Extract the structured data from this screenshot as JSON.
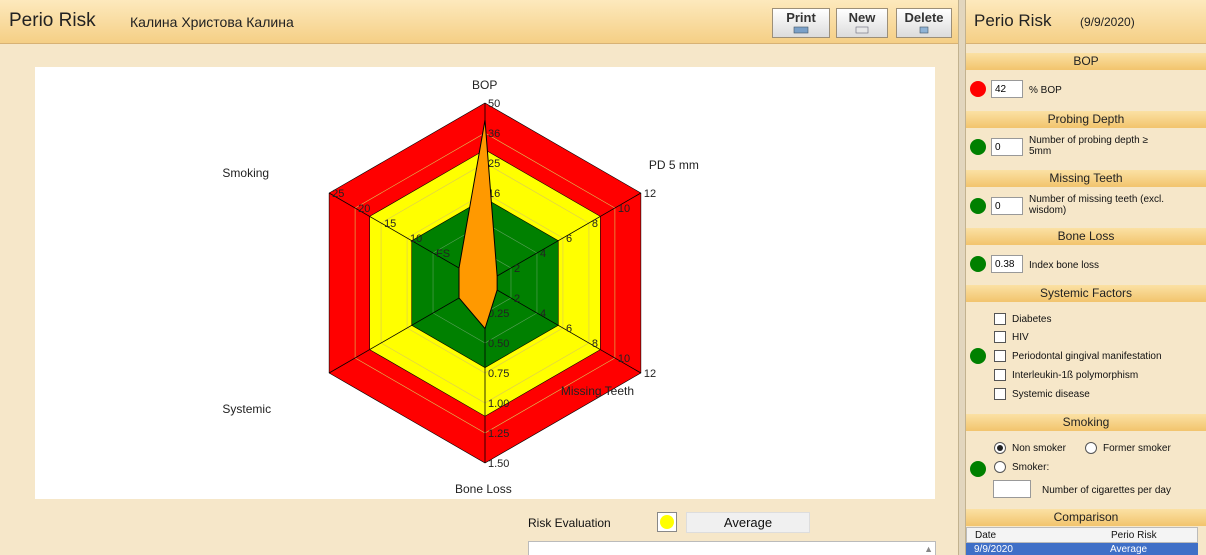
{
  "header": {
    "app_title": "Perio Risk",
    "patient_name": "Калина Христова Калина",
    "buttons": {
      "print": "Print",
      "new": "New",
      "delete": "Delete"
    }
  },
  "chart_data": {
    "type": "radar",
    "axes": [
      {
        "name": "BOP",
        "ticks": [
          "50",
          "36",
          "25",
          "16",
          "9",
          "4"
        ],
        "value": 42
      },
      {
        "name": "PD 5 mm",
        "ticks": [
          "12",
          "10",
          "8",
          "6",
          "4",
          "2"
        ],
        "value": 0
      },
      {
        "name": "Missing Teeth",
        "ticks": [
          "12",
          "10",
          "8",
          "6",
          "4",
          "2"
        ],
        "value": 0
      },
      {
        "name": "Bone Loss",
        "ticks": [
          "1.50",
          "1.25",
          "1.00",
          "0.75",
          "0.50",
          "0.25"
        ],
        "value": 0.38
      },
      {
        "name": "Systemic",
        "ticks": [],
        "value": 0
      },
      {
        "name": "Smoking",
        "ticks": [
          "25",
          "20",
          "15",
          "10",
          "FS",
          "NS"
        ],
        "value": 0
      }
    ],
    "zones": [
      {
        "name": "high",
        "color": "#ff0000"
      },
      {
        "name": "moderate",
        "color": "#ffff00"
      },
      {
        "name": "low",
        "color": "#008000"
      }
    ],
    "patient_color": "#ff9900"
  },
  "risk": {
    "label": "Risk Evaluation",
    "value": "Average",
    "color": "#ffff00"
  },
  "panel": {
    "title": "Perio Risk",
    "date": "(9/9/2020)",
    "bop": {
      "header": "BOP",
      "value": "42",
      "label": "% BOP",
      "status_color": "#ff0000"
    },
    "probing": {
      "header": "Probing Depth",
      "value": "0",
      "label_l1": "Number of probing depth ≥",
      "label_l2": "5mm",
      "status_color": "#008000"
    },
    "missing": {
      "header": "Missing Teeth",
      "value": "0",
      "label_l1": "Number of missing teeth (excl.",
      "label_l2": "wisdom)",
      "status_color": "#008000"
    },
    "boneloss": {
      "header": "Bone Loss",
      "value": "0.38",
      "label": "Index bone loss",
      "status_color": "#008000"
    },
    "systemic": {
      "header": "Systemic Factors",
      "status_color": "#008000",
      "items": [
        "Diabetes",
        "HIV",
        "Periodontal gingival manifestation",
        "Interleukin-1ß polymorphism",
        "Systemic disease"
      ]
    },
    "smoking": {
      "header": "Smoking",
      "status_color": "#008000",
      "non_smoker": "Non smoker",
      "former_smoker": "Former smoker",
      "smoker": "Smoker:",
      "cig_label": "Number of cigarettes per day",
      "selected": "Non smoker"
    },
    "comparison": {
      "header": "Comparison",
      "columns": [
        "Date",
        "Perio Risk"
      ],
      "rows": [
        [
          "9/9/2020",
          "Average"
        ]
      ]
    }
  }
}
